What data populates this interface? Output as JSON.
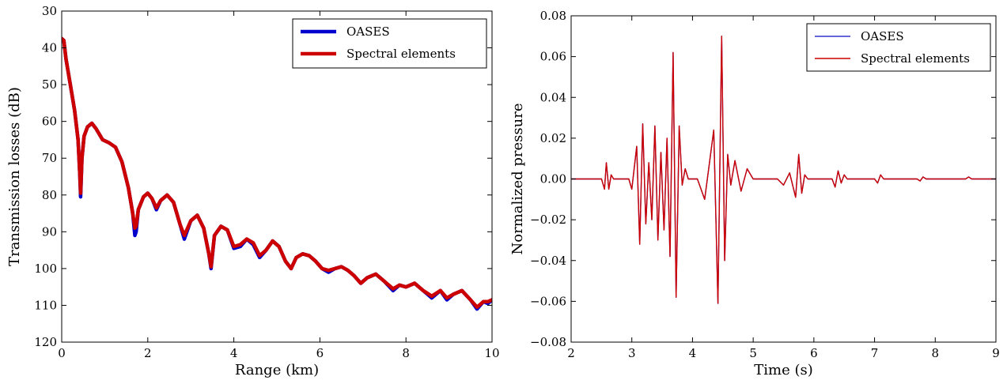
{
  "chart_data": [
    {
      "type": "line",
      "xlabel": "Range (km)",
      "ylabel": "Transmission losses (dB)",
      "xlim": [
        0,
        10
      ],
      "ylim": [
        30,
        120
      ],
      "y_inverted": true,
      "xticks": [
        "0",
        "2",
        "4",
        "6",
        "8",
        "10"
      ],
      "yticks": [
        "30",
        "40",
        "50",
        "60",
        "70",
        "80",
        "90",
        "100",
        "110",
        "120"
      ],
      "legend": "top-right",
      "series": [
        {
          "name": "OASES",
          "color": "#0000cc",
          "x": [
            0,
            0.05,
            0.1,
            0.2,
            0.3,
            0.38,
            0.42,
            0.44,
            0.47,
            0.52,
            0.6,
            0.7,
            0.8,
            0.95,
            1.1,
            1.25,
            1.4,
            1.55,
            1.65,
            1.7,
            1.73,
            1.78,
            1.9,
            2.0,
            2.1,
            2.2,
            2.3,
            2.45,
            2.6,
            2.75,
            2.85,
            3.0,
            3.15,
            3.3,
            3.42,
            3.47,
            3.55,
            3.7,
            3.85,
            4.0,
            4.15,
            4.3,
            4.45,
            4.6,
            4.75,
            4.9,
            5.05,
            5.2,
            5.33,
            5.45,
            5.6,
            5.75,
            5.9,
            6.05,
            6.2,
            6.35,
            6.5,
            6.65,
            6.8,
            6.95,
            7.1,
            7.3,
            7.5,
            7.7,
            7.85,
            8.0,
            8.2,
            8.4,
            8.6,
            8.8,
            8.95,
            9.1,
            9.3,
            9.5,
            9.65,
            9.8,
            9.9,
            10.0
          ],
          "y": [
            37.5,
            38,
            43,
            50,
            57,
            65,
            74,
            80.5,
            70,
            64,
            61.5,
            60.5,
            62,
            65,
            65.8,
            67,
            71,
            78,
            85,
            91,
            90,
            84,
            80.5,
            79.5,
            81,
            84,
            81.5,
            80,
            82,
            88,
            92,
            87,
            85.5,
            89,
            96,
            100,
            91,
            88.5,
            89.5,
            94.5,
            94,
            92,
            93.5,
            97,
            95,
            92.5,
            94,
            98,
            100,
            97,
            96,
            96.5,
            98,
            100,
            101,
            100,
            99.5,
            100.5,
            102,
            104,
            102.5,
            101.5,
            103.5,
            106,
            104.5,
            105,
            104,
            106,
            108,
            106,
            108.5,
            107,
            106,
            108.5,
            111,
            109,
            109.5,
            108.5
          ]
        },
        {
          "name": "Spectral elements",
          "color": "#cc0000",
          "x": [
            0,
            0.05,
            0.1,
            0.2,
            0.3,
            0.38,
            0.42,
            0.44,
            0.47,
            0.52,
            0.6,
            0.7,
            0.8,
            0.95,
            1.1,
            1.25,
            1.4,
            1.55,
            1.65,
            1.7,
            1.73,
            1.78,
            1.9,
            2.0,
            2.1,
            2.2,
            2.3,
            2.45,
            2.6,
            2.75,
            2.85,
            3.0,
            3.15,
            3.3,
            3.42,
            3.47,
            3.55,
            3.7,
            3.85,
            4.0,
            4.15,
            4.3,
            4.45,
            4.6,
            4.75,
            4.9,
            5.05,
            5.2,
            5.33,
            5.45,
            5.6,
            5.75,
            5.9,
            6.05,
            6.2,
            6.35,
            6.5,
            6.65,
            6.8,
            6.95,
            7.1,
            7.3,
            7.5,
            7.7,
            7.85,
            8.0,
            8.2,
            8.4,
            8.6,
            8.8,
            8.95,
            9.1,
            9.3,
            9.5,
            9.65,
            9.8,
            9.9,
            10.0
          ],
          "y": [
            37.5,
            38,
            43,
            50,
            57,
            65,
            74,
            79.5,
            70,
            64,
            61.5,
            60.5,
            62,
            65,
            65.8,
            67,
            71,
            78,
            85,
            89,
            88.5,
            84,
            80.5,
            79.5,
            81,
            83.5,
            81.5,
            80,
            82,
            88,
            91,
            87,
            85.5,
            89,
            96,
            99.5,
            91,
            88.5,
            89.5,
            94,
            93.5,
            92,
            93,
            96.5,
            95,
            92.5,
            94,
            98,
            100,
            97,
            96,
            96.5,
            98,
            100,
            100.5,
            100,
            99.5,
            100.5,
            102,
            104,
            102.5,
            101.5,
            103.5,
            105.5,
            104.5,
            105,
            104,
            106,
            107.5,
            106,
            108,
            107,
            106,
            108.5,
            110.5,
            109,
            109,
            108.5
          ]
        }
      ]
    },
    {
      "type": "line",
      "xlabel": "Time (s)",
      "ylabel": "Normalized pressure",
      "xlim": [
        2,
        9
      ],
      "ylim": [
        -0.08,
        0.08
      ],
      "xticks": [
        "2",
        "3",
        "4",
        "5",
        "6",
        "7",
        "8",
        "9"
      ],
      "yticks": [
        "−0.08",
        "−0.06",
        "−0.04",
        "−0.02",
        "0.00",
        "0.02",
        "0.04",
        "0.06",
        "0.08"
      ],
      "legend": "top-right",
      "series": [
        {
          "name": "OASES",
          "color": "#3333cc",
          "x": [
            2.0,
            2.5,
            2.55,
            2.58,
            2.62,
            2.66,
            2.7,
            2.8,
            2.95,
            3.0,
            3.08,
            3.13,
            3.18,
            3.23,
            3.28,
            3.33,
            3.38,
            3.43,
            3.48,
            3.53,
            3.58,
            3.63,
            3.68,
            3.73,
            3.78,
            3.83,
            3.88,
            3.93,
            3.98,
            4.03,
            4.08,
            4.2,
            4.35,
            4.42,
            4.48,
            4.53,
            4.58,
            4.63,
            4.7,
            4.8,
            4.9,
            5.0,
            5.05,
            5.1,
            5.15,
            5.2,
            5.3,
            5.4,
            5.5,
            5.6,
            5.7,
            5.75,
            5.8,
            5.85,
            5.9,
            6.3,
            6.35,
            6.4,
            6.45,
            6.5,
            6.55,
            6.7,
            7.0,
            7.05,
            7.1,
            7.15,
            7.3,
            7.7,
            7.75,
            7.8,
            7.85,
            8.0,
            8.5,
            8.55,
            8.6,
            9.0
          ],
          "y": [
            0,
            0,
            -0.005,
            0.008,
            -0.005,
            0.002,
            0,
            0,
            0,
            -0.005,
            0.016,
            -0.032,
            0.027,
            -0.022,
            0.008,
            -0.02,
            0.026,
            -0.03,
            0.013,
            -0.025,
            0.02,
            -0.038,
            0.062,
            -0.058,
            0.026,
            -0.003,
            0.005,
            0,
            0,
            0,
            0,
            -0.01,
            0.024,
            -0.061,
            0.07,
            -0.04,
            0.012,
            -0.003,
            0.009,
            -0.006,
            0.005,
            0,
            0,
            0,
            0,
            0,
            0,
            0,
            -0.003,
            0.003,
            -0.009,
            0.012,
            -0.007,
            0.002,
            0,
            0,
            -0.004,
            0.004,
            -0.002,
            0.002,
            0,
            0,
            0,
            -0.002,
            0.002,
            0,
            0,
            0,
            -0.001,
            0.001,
            0,
            0,
            0,
            0.001,
            0,
            0
          ]
        },
        {
          "name": "Spectral elements",
          "color": "#cc0000",
          "x": [
            2.0,
            2.5,
            2.55,
            2.58,
            2.62,
            2.66,
            2.7,
            2.8,
            2.95,
            3.0,
            3.08,
            3.13,
            3.18,
            3.23,
            3.28,
            3.33,
            3.38,
            3.43,
            3.48,
            3.53,
            3.58,
            3.63,
            3.68,
            3.73,
            3.78,
            3.83,
            3.88,
            3.93,
            3.98,
            4.03,
            4.08,
            4.2,
            4.35,
            4.42,
            4.48,
            4.53,
            4.58,
            4.63,
            4.7,
            4.8,
            4.9,
            5.0,
            5.05,
            5.1,
            5.15,
            5.2,
            5.3,
            5.4,
            5.5,
            5.6,
            5.7,
            5.75,
            5.8,
            5.85,
            5.9,
            6.3,
            6.35,
            6.4,
            6.45,
            6.5,
            6.55,
            6.7,
            7.0,
            7.05,
            7.1,
            7.15,
            7.3,
            7.7,
            7.75,
            7.8,
            7.85,
            8.0,
            8.5,
            8.55,
            8.6,
            9.0
          ],
          "y": [
            0,
            0,
            -0.005,
            0.008,
            -0.005,
            0.002,
            0,
            0,
            0,
            -0.005,
            0.016,
            -0.032,
            0.027,
            -0.022,
            0.008,
            -0.02,
            0.026,
            -0.03,
            0.013,
            -0.025,
            0.02,
            -0.038,
            0.062,
            -0.058,
            0.026,
            -0.003,
            0.005,
            0,
            0,
            0,
            0,
            -0.01,
            0.024,
            -0.061,
            0.07,
            -0.04,
            0.012,
            -0.003,
            0.009,
            -0.006,
            0.005,
            0,
            0,
            0,
            0,
            0,
            0,
            0,
            -0.003,
            0.003,
            -0.009,
            0.012,
            -0.007,
            0.002,
            0,
            0,
            -0.004,
            0.004,
            -0.002,
            0.002,
            0,
            0,
            0,
            -0.002,
            0.002,
            0,
            0,
            0,
            -0.001,
            0.001,
            0,
            0,
            0,
            0.001,
            0,
            0
          ]
        }
      ]
    }
  ]
}
